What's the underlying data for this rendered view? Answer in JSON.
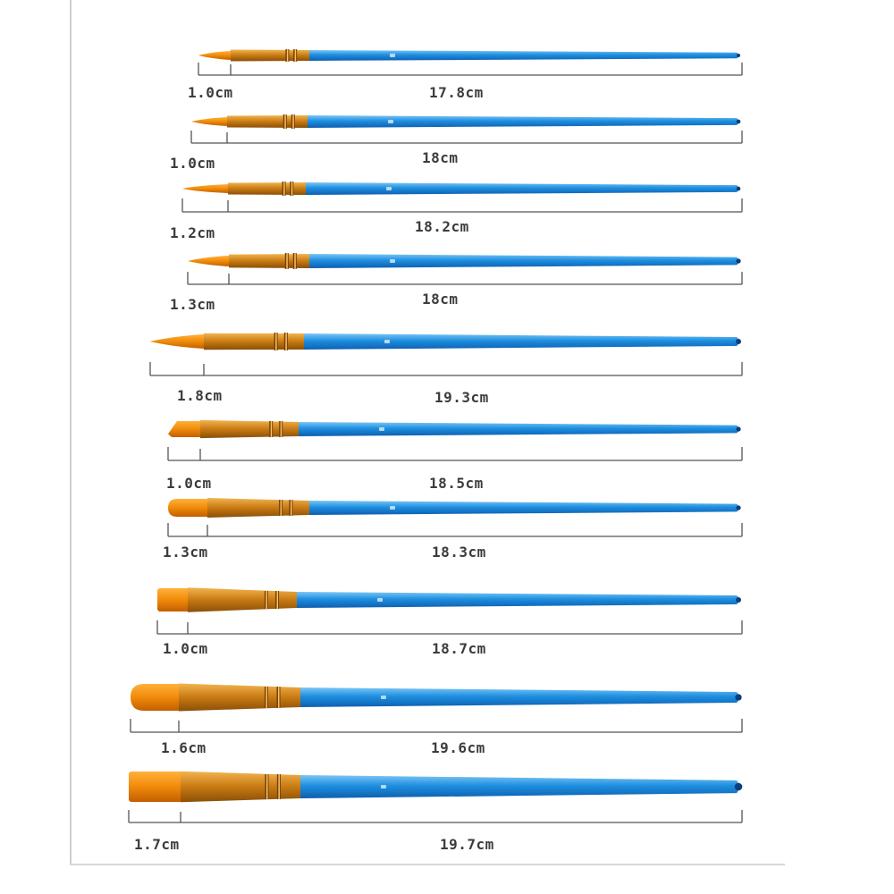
{
  "colors": {
    "handle": "#1e8fe0",
    "handle_dark": "#0e5fb0",
    "handle_light": "#7cc6f5",
    "ferrule": "#c87a12",
    "ferrule_light": "#f2b450",
    "bristles": "#f08a0a",
    "bristles_light": "#ffb13a",
    "dimension_line": "#555555",
    "label_text": "#3c3c3c"
  },
  "brushes": [
    {
      "shape": "round",
      "tip_label": "1.0cm",
      "total_label": "17.8cm"
    },
    {
      "shape": "round",
      "tip_label": "1.0cm",
      "total_label": "18cm"
    },
    {
      "shape": "round",
      "tip_label": "1.2cm",
      "total_label": "18.2cm"
    },
    {
      "shape": "round",
      "tip_label": "1.3cm",
      "total_label": "18cm"
    },
    {
      "shape": "round",
      "tip_label": "1.8cm",
      "total_label": "19.3cm"
    },
    {
      "shape": "angled",
      "tip_label": "1.0cm",
      "total_label": "18.5cm"
    },
    {
      "shape": "filbert",
      "tip_label": "1.3cm",
      "total_label": "18.3cm"
    },
    {
      "shape": "flat",
      "tip_label": "1.0cm",
      "total_label": "18.7cm"
    },
    {
      "shape": "filbert",
      "tip_label": "1.6cm",
      "total_label": "19.6cm"
    },
    {
      "shape": "flat",
      "tip_label": "1.7cm",
      "total_label": "19.7cm"
    }
  ]
}
